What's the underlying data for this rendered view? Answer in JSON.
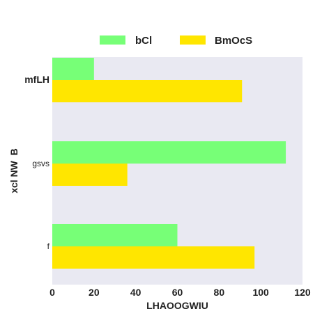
{
  "chart_data": {
    "type": "bar",
    "orientation": "horizontal",
    "categories": [
      "mfLH",
      "gsvs",
      "f"
    ],
    "series": [
      {
        "name": "bCl",
        "values": [
          20,
          112,
          60
        ],
        "color": "#77ff77"
      },
      {
        "name": "BmOcS",
        "values": [
          91,
          36,
          97
        ],
        "color": "#ffe600"
      }
    ],
    "xlabel": "LHAOOGWIU",
    "ylabel": "xcl NW  B",
    "xlim": [
      0,
      120
    ],
    "xticks": [
      "0",
      "20",
      "40",
      "60",
      "80",
      "100",
      "120"
    ],
    "grid": false,
    "legend": "top-center",
    "plot_background": "#e9e9f2"
  }
}
